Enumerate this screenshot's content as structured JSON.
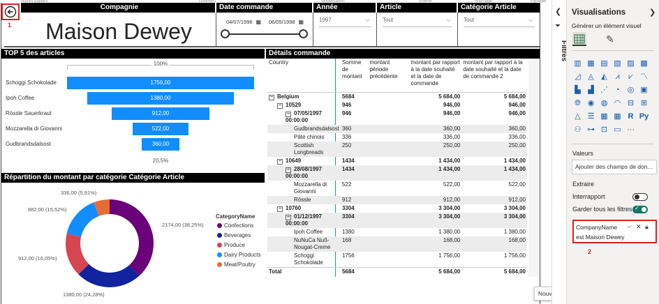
{
  "top_strip": [
    "Autres papiers",
    "Données",
    "Modélisation",
    "Insérer",
    "Affichage",
    "Partager"
  ],
  "back": {
    "annotation": "1"
  },
  "slicers": {
    "company": {
      "header": "Compagnie",
      "value": "Maison Dewey"
    },
    "date": {
      "header": "Date commande",
      "start": "04/07/1996",
      "end": "06/05/1998"
    },
    "year": {
      "header": "Année commande",
      "value": "1997"
    },
    "article": {
      "header": "Article",
      "value": "Tout"
    },
    "category": {
      "header": "Catégorie Article",
      "value": "Tout"
    }
  },
  "top5": {
    "title": "TOP 5 des articles",
    "top_pct": "100%",
    "bottom_pct": "20,5%"
  },
  "pie": {
    "title": "Répartition du montant par catégorie Catégorie Article",
    "labels": [
      "2174,00 (38,25%)",
      "1380,00 (24,28%)",
      "912,00 (16,05%)",
      "882,00 (15,52%)",
      "336,00 (5,91%)"
    ],
    "legend_title": "CategoryName"
  },
  "details": {
    "title": "Détails commande",
    "columns": [
      "Country",
      "Somme de montant",
      "montant période précédente",
      "montant par rapport à la date souhaité et la date de commande",
      "montant par rapport à la date souhaité et la date de commande 2"
    ],
    "rows": [
      {
        "label": "Belgium",
        "exp": "⊟",
        "indent": 0,
        "bold": true,
        "c1": "5684",
        "c2": "",
        "c3": "5 684,00",
        "c4": "5 684,00"
      },
      {
        "label": "10529",
        "exp": "⊟",
        "indent": 1,
        "bold": true,
        "c1": "946",
        "c2": "",
        "c3": "946,00",
        "c4": "946,00"
      },
      {
        "label": "07/05/1997 00:00:00",
        "exp": "⊟",
        "indent": 2,
        "bold": true,
        "c1": "946",
        "c2": "",
        "c3": "946,00",
        "c4": "946,00"
      },
      {
        "label": "Gudbrandsdalsost",
        "indent": 3,
        "shade": true,
        "c1": "360",
        "c2": "",
        "c3": "360,00",
        "c4": "360,00"
      },
      {
        "label": "Pâté chinois",
        "indent": 3,
        "c1": "336",
        "c2": "",
        "c3": "336,00",
        "c4": "336,00"
      },
      {
        "label": "Scottish Longbreads",
        "indent": 3,
        "shade": true,
        "c1": "250",
        "c2": "",
        "c3": "250,00",
        "c4": "250,00"
      },
      {
        "label": "10649",
        "exp": "⊟",
        "indent": 1,
        "bold": true,
        "c1": "1434",
        "c2": "",
        "c3": "1 434,00",
        "c4": "1 434,00"
      },
      {
        "label": "28/08/1997 00:00:00",
        "exp": "⊟",
        "indent": 2,
        "bold": true,
        "shade": true,
        "c1": "1434",
        "c2": "",
        "c3": "1 434,00",
        "c4": "1 434,00"
      },
      {
        "label": "Mozzarella di Giovanni",
        "indent": 3,
        "c1": "522",
        "c2": "",
        "c3": "522,00",
        "c4": "522,00"
      },
      {
        "label": "Rössle",
        "indent": 3,
        "shade": true,
        "c1": "912",
        "c2": "",
        "c3": "912,00",
        "c4": "912,00"
      },
      {
        "label": "10760",
        "exp": "⊟",
        "indent": 1,
        "bold": true,
        "c1": "3304",
        "c2": "",
        "c3": "3 304,00",
        "c4": "3 304,00"
      },
      {
        "label": "01/12/1997 00:00:00",
        "exp": "⊟",
        "indent": 2,
        "bold": true,
        "shade": true,
        "c1": "3304",
        "c2": "",
        "c3": "3 304,00",
        "c4": "3 304,00"
      },
      {
        "label": "Ipoh Coffee",
        "indent": 3,
        "c1": "1380",
        "c2": "",
        "c3": "1 380,00",
        "c4": "1 380,00"
      },
      {
        "label": "NuNuCa Nuß-Nougat-Creme",
        "indent": 3,
        "shade": true,
        "c1": "168",
        "c2": "",
        "c3": "168,00",
        "c4": "168,00"
      },
      {
        "label": "Schoggi Schokolade",
        "indent": 3,
        "c1": "1756",
        "c2": "",
        "c3": "1 756,00",
        "c4": "1 756,00"
      },
      {
        "label": "Total",
        "indent": 0,
        "bold": true,
        "c1": "5684",
        "c2": "",
        "c3": "5 684,00",
        "c4": "5 684,00"
      }
    ]
  },
  "panel": {
    "filters_tab": "Filtres",
    "title": "Visualisations",
    "build_label": "Générer un élément visuel",
    "values_label": "Valeurs",
    "add_fields": "Ajouter des champs de don...",
    "drill_label": "Extraire",
    "cross_report": "Interrapport",
    "keep_filters": "Garder tous les filtres",
    "filter_card": {
      "field": "CompanyName",
      "value": "est Maison Dewey",
      "annotation": "2"
    },
    "new_page_tooltip": "Nouvelle page",
    "r_icon": "R",
    "py_icon": "Py",
    "more_icon": "···"
  },
  "chart_data": [
    {
      "type": "bar",
      "title": "TOP 5 des articles",
      "categories": [
        "Schoggi Schokolade",
        "Ipoh Coffee",
        "Rössle Sauerkraut",
        "Mozzarella di Giovanni",
        "Gudbrandsdalsost"
      ],
      "values": [
        1756,
        1380,
        912,
        522,
        360
      ],
      "value_labels": [
        "1756,00",
        "1380,00",
        "912,00",
        "522,00",
        "360,00"
      ],
      "color": "#118DFF"
    },
    {
      "type": "pie",
      "title": "Répartition du montant par catégorie Catégorie Article",
      "categories": [
        "Confections",
        "Beverages",
        "Produce",
        "Dairy Products",
        "Meat/Poultry"
      ],
      "values": [
        2174,
        1380,
        912,
        882,
        336
      ],
      "colors": [
        "#6B007B",
        "#12239E",
        "#D64550",
        "#118DFF",
        "#E66C37"
      ],
      "legend_title": "CategoryName"
    }
  ]
}
